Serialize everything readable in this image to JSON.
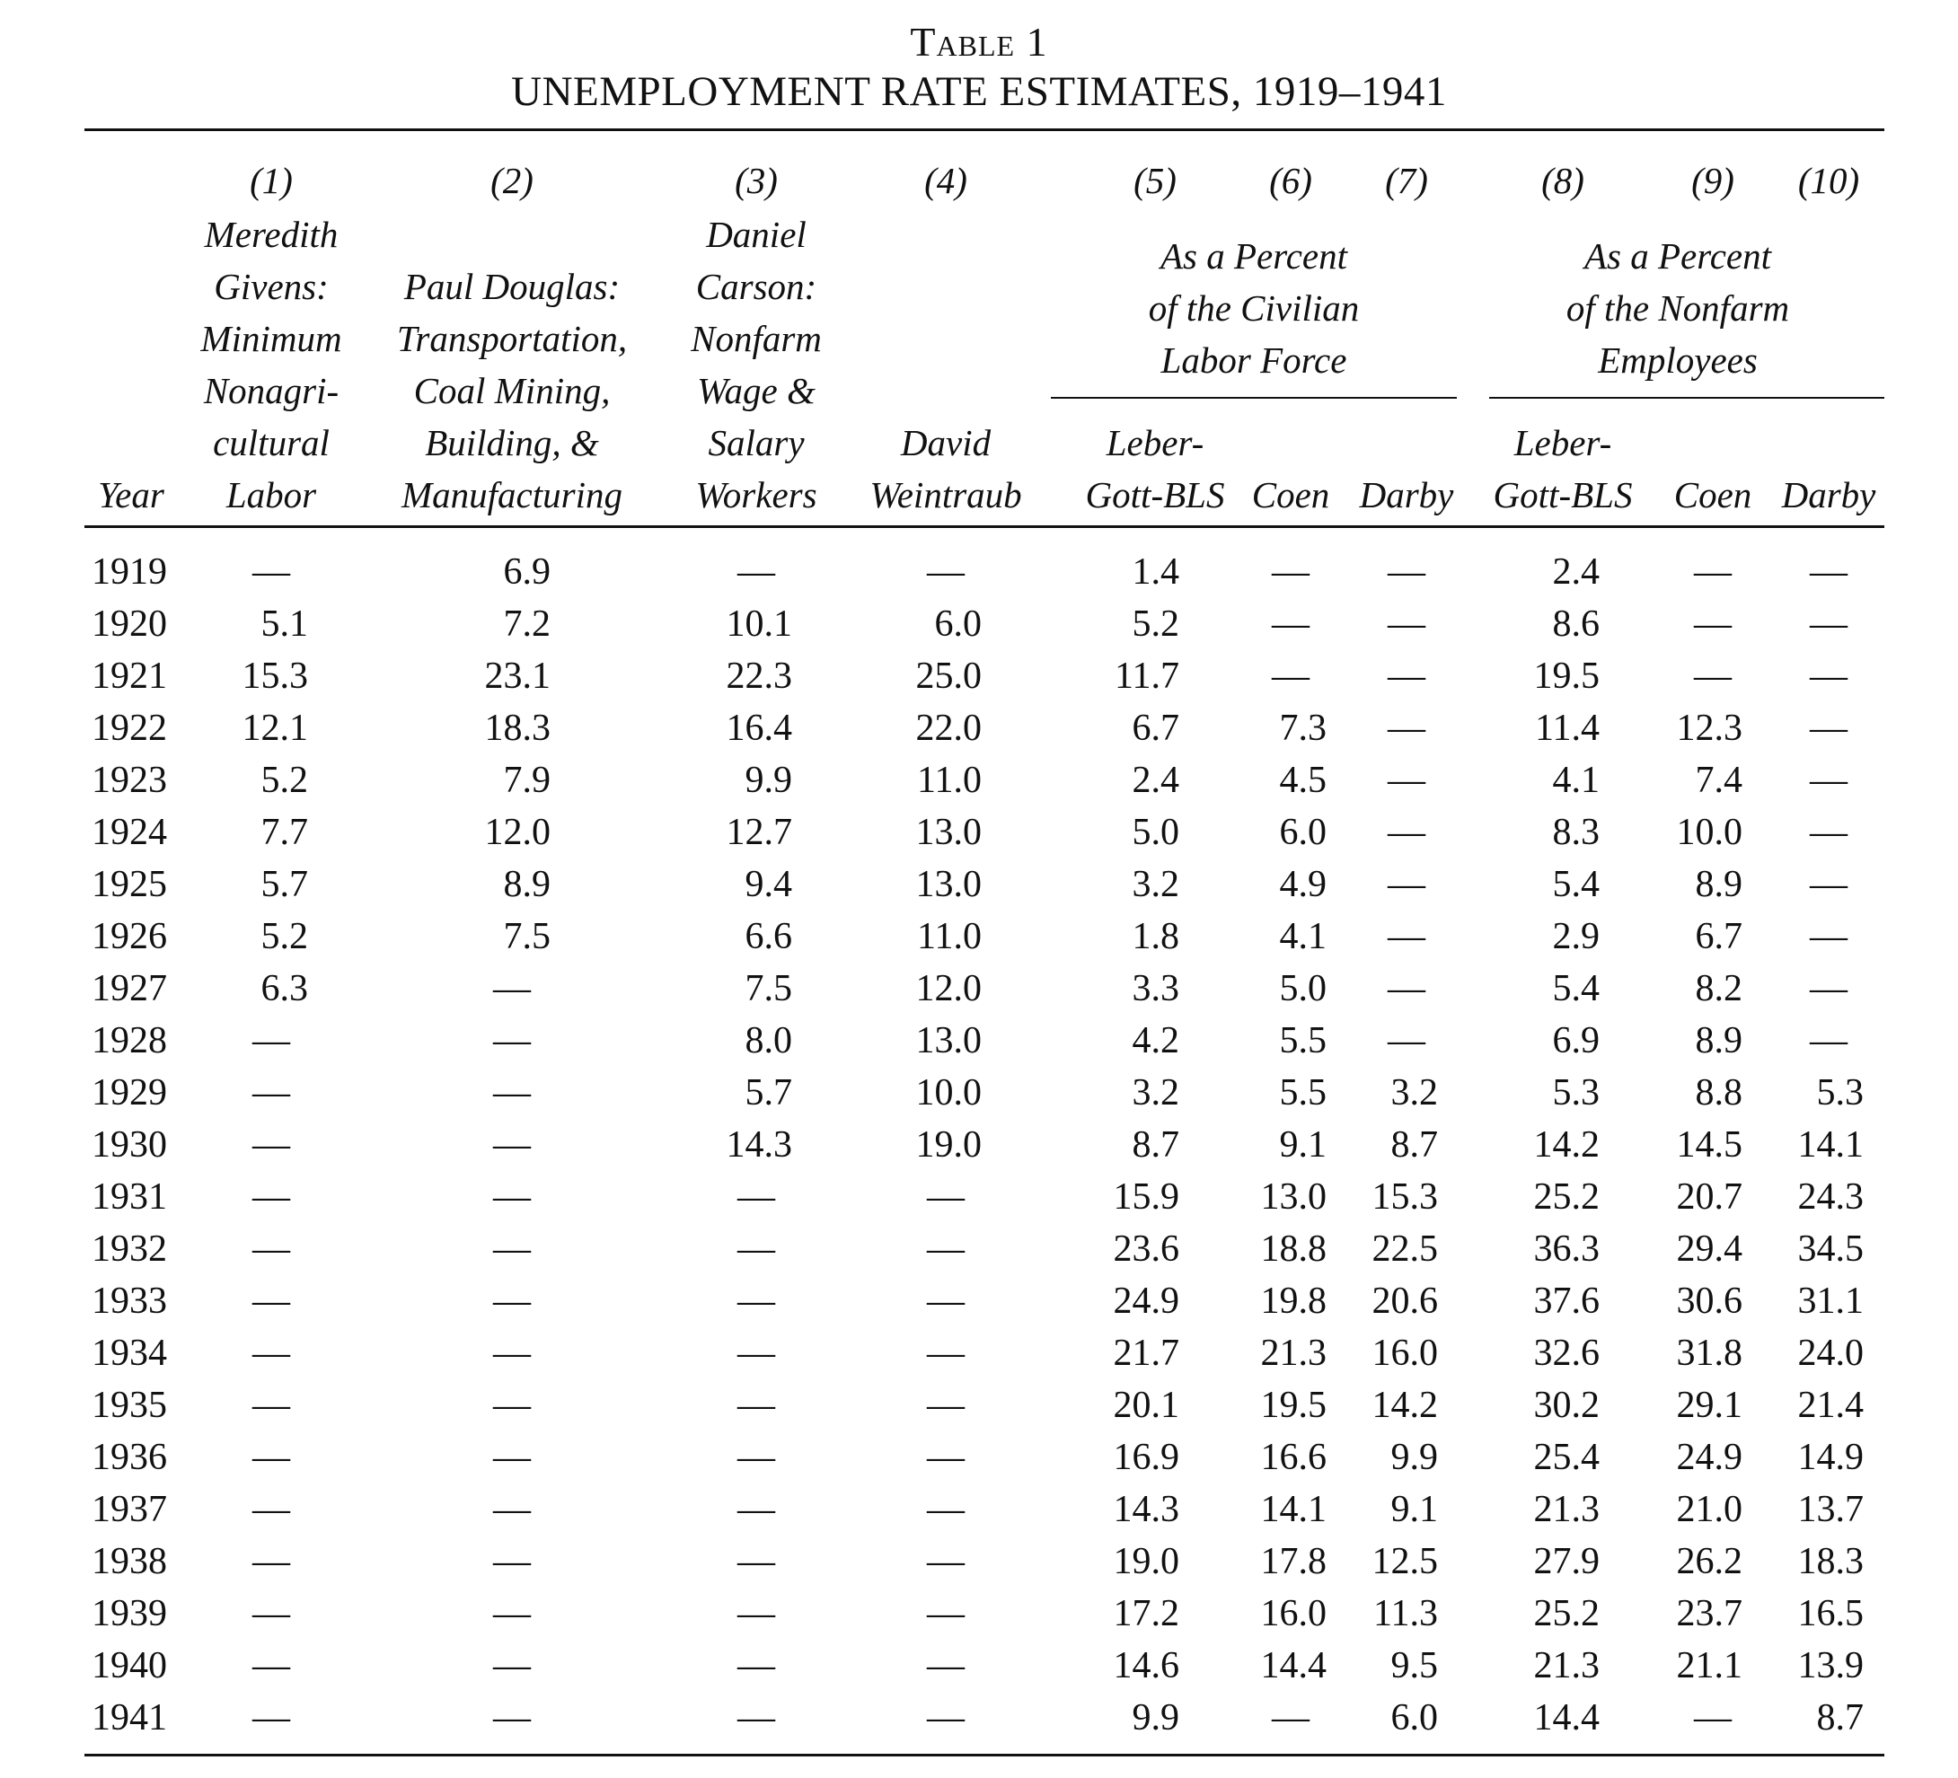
{
  "header": {
    "label": "Table 1",
    "title": "UNEMPLOYMENT RATE ESTIMATES, 1919–1941"
  },
  "columns": [
    {
      "num": "(1)",
      "lines": [
        "Meredith",
        "Givens:",
        "Minimum",
        "Nonagri-",
        "cultural",
        "Labor"
      ]
    },
    {
      "num": "(2)",
      "lines": [
        "Paul Douglas:",
        "Transportation,",
        "Coal Mining,",
        "Building, &",
        "Manufacturing"
      ]
    },
    {
      "num": "(3)",
      "lines": [
        "Daniel",
        "Carson:",
        "Nonfarm",
        "Wage &",
        "Salary",
        "Workers"
      ]
    },
    {
      "num": "(4)",
      "lines": [
        "David",
        "Weintraub"
      ]
    },
    {
      "num": "(5)",
      "lines": [
        "Leber-",
        "Gott-BLS"
      ]
    },
    {
      "num": "(6)",
      "lines": [
        "Coen"
      ]
    },
    {
      "num": "(7)",
      "lines": [
        "Darby"
      ]
    },
    {
      "num": "(8)",
      "lines": [
        "Leber-",
        "Gott-BLS"
      ]
    },
    {
      "num": "(9)",
      "lines": [
        "Coen"
      ]
    },
    {
      "num": "(10)",
      "lines": [
        "Darby"
      ]
    }
  ],
  "year_label": "Year",
  "groups": [
    {
      "lines": [
        "As a Percent",
        "of the Civilian",
        "Labor Force"
      ]
    },
    {
      "lines": [
        "As a Percent",
        "of the Nonfarm",
        "Employees"
      ]
    }
  ],
  "rows": [
    {
      "year": "1919",
      "v": [
        "—",
        "6.9",
        "—",
        "—",
        "1.4",
        "—",
        "—",
        "2.4",
        "—",
        "—"
      ]
    },
    {
      "year": "1920",
      "v": [
        "5.1",
        "7.2",
        "10.1",
        "6.0",
        "5.2",
        "—",
        "—",
        "8.6",
        "—",
        "—"
      ]
    },
    {
      "year": "1921",
      "v": [
        "15.3",
        "23.1",
        "22.3",
        "25.0",
        "11.7",
        "—",
        "—",
        "19.5",
        "—",
        "—"
      ]
    },
    {
      "year": "1922",
      "v": [
        "12.1",
        "18.3",
        "16.4",
        "22.0",
        "6.7",
        "7.3",
        "—",
        "11.4",
        "12.3",
        "—"
      ]
    },
    {
      "year": "1923",
      "v": [
        "5.2",
        "7.9",
        "9.9",
        "11.0",
        "2.4",
        "4.5",
        "—",
        "4.1",
        "7.4",
        "—"
      ]
    },
    {
      "year": "1924",
      "v": [
        "7.7",
        "12.0",
        "12.7",
        "13.0",
        "5.0",
        "6.0",
        "—",
        "8.3",
        "10.0",
        "—"
      ]
    },
    {
      "year": "1925",
      "v": [
        "5.7",
        "8.9",
        "9.4",
        "13.0",
        "3.2",
        "4.9",
        "—",
        "5.4",
        "8.9",
        "—"
      ]
    },
    {
      "year": "1926",
      "v": [
        "5.2",
        "7.5",
        "6.6",
        "11.0",
        "1.8",
        "4.1",
        "—",
        "2.9",
        "6.7",
        "—"
      ]
    },
    {
      "year": "1927",
      "v": [
        "6.3",
        "—",
        "7.5",
        "12.0",
        "3.3",
        "5.0",
        "—",
        "5.4",
        "8.2",
        "—"
      ]
    },
    {
      "year": "1928",
      "v": [
        "—",
        "—",
        "8.0",
        "13.0",
        "4.2",
        "5.5",
        "—",
        "6.9",
        "8.9",
        "—"
      ]
    },
    {
      "year": "1929",
      "v": [
        "—",
        "—",
        "5.7",
        "10.0",
        "3.2",
        "5.5",
        "3.2",
        "5.3",
        "8.8",
        "5.3"
      ]
    },
    {
      "year": "1930",
      "v": [
        "—",
        "—",
        "14.3",
        "19.0",
        "8.7",
        "9.1",
        "8.7",
        "14.2",
        "14.5",
        "14.1"
      ]
    },
    {
      "year": "1931",
      "v": [
        "—",
        "—",
        "—",
        "—",
        "15.9",
        "13.0",
        "15.3",
        "25.2",
        "20.7",
        "24.3"
      ]
    },
    {
      "year": "1932",
      "v": [
        "—",
        "—",
        "—",
        "—",
        "23.6",
        "18.8",
        "22.5",
        "36.3",
        "29.4",
        "34.5"
      ]
    },
    {
      "year": "1933",
      "v": [
        "—",
        "—",
        "—",
        "—",
        "24.9",
        "19.8",
        "20.6",
        "37.6",
        "30.6",
        "31.1"
      ]
    },
    {
      "year": "1934",
      "v": [
        "—",
        "—",
        "—",
        "—",
        "21.7",
        "21.3",
        "16.0",
        "32.6",
        "31.8",
        "24.0"
      ]
    },
    {
      "year": "1935",
      "v": [
        "—",
        "—",
        "—",
        "—",
        "20.1",
        "19.5",
        "14.2",
        "30.2",
        "29.1",
        "21.4"
      ]
    },
    {
      "year": "1936",
      "v": [
        "—",
        "—",
        "—",
        "—",
        "16.9",
        "16.6",
        "9.9",
        "25.4",
        "24.9",
        "14.9"
      ]
    },
    {
      "year": "1937",
      "v": [
        "—",
        "—",
        "—",
        "—",
        "14.3",
        "14.1",
        "9.1",
        "21.3",
        "21.0",
        "13.7"
      ]
    },
    {
      "year": "1938",
      "v": [
        "—",
        "—",
        "—",
        "—",
        "19.0",
        "17.8",
        "12.5",
        "27.9",
        "26.2",
        "18.3"
      ]
    },
    {
      "year": "1939",
      "v": [
        "—",
        "—",
        "—",
        "—",
        "17.2",
        "16.0",
        "11.3",
        "25.2",
        "23.7",
        "16.5"
      ]
    },
    {
      "year": "1940",
      "v": [
        "—",
        "—",
        "—",
        "—",
        "14.6",
        "14.4",
        "9.5",
        "21.3",
        "21.1",
        "13.9"
      ]
    },
    {
      "year": "1941",
      "v": [
        "—",
        "—",
        "—",
        "—",
        "9.9",
        "—",
        "6.0",
        "14.4",
        "—",
        "8.7"
      ]
    }
  ]
}
